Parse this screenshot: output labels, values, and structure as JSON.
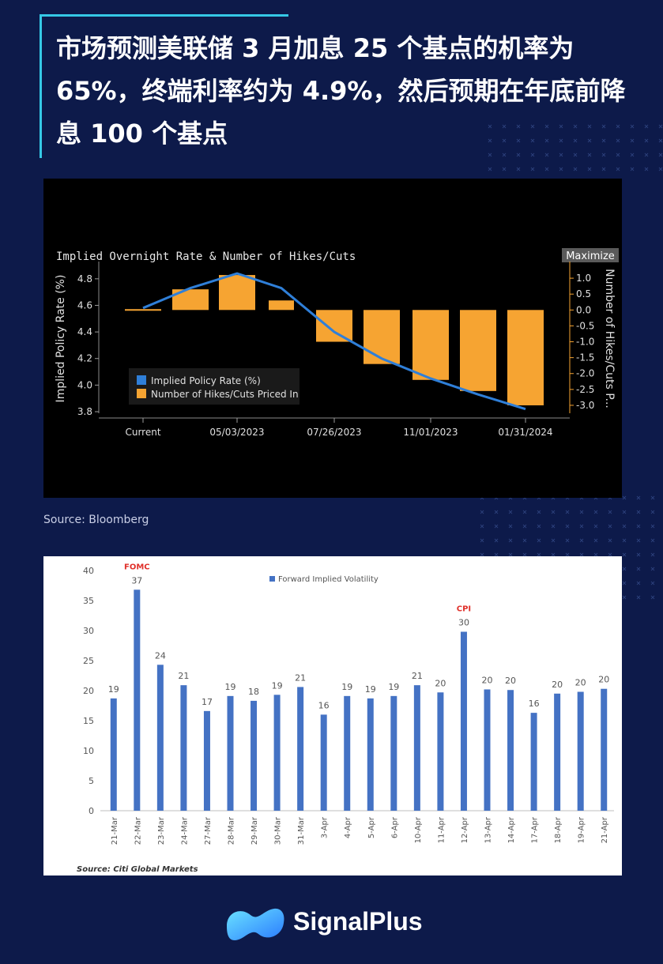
{
  "title": "市场预测美联储 3 月加息 25 个基点的机率为 65%，终端利率约为 4.9%，然后预期在年底前降息 100 个基点",
  "source1": "Source: Bloomberg",
  "brand": "SignalPlus",
  "colors": {
    "background": "#0d1a4a",
    "accent": "#35c8e6",
    "orange": "#f6a432",
    "blue_line": "#2f7fd8",
    "bar_blue": "#4472c4"
  },
  "chart_data": [
    {
      "type": "bar",
      "title": "Implied Overnight Rate & Number of Hikes/Cuts",
      "button": "Maximize",
      "ylabel": "Implied Policy Rate (%)",
      "y2label": "Number of Hikes/Cuts P...",
      "ylim": [
        3.8,
        4.9
      ],
      "y2lim": [
        -3.2,
        1.4
      ],
      "yticks": [
        "4.8",
        "4.6",
        "4.4",
        "4.2",
        "4.0",
        "3.8"
      ],
      "y2ticks": [
        "1.0",
        "0.5",
        "0.0",
        "-0.5",
        "-1.0",
        "-1.5",
        "-2.0",
        "-2.5",
        "-3.0"
      ],
      "xticks": [
        "Current",
        "05/03/2023",
        "07/26/2023",
        "11/01/2023",
        "01/31/2024"
      ],
      "legend": [
        "Implied Policy Rate (%)",
        "Number of Hikes/Cuts Priced In"
      ],
      "series": [
        {
          "name": "Number of Hikes/Cuts Priced In",
          "values": [
            0.0,
            0.65,
            1.1,
            0.3,
            -1.0,
            -1.7,
            -2.2,
            -2.55,
            -3.0
          ]
        },
        {
          "name": "Implied Policy Rate (%)",
          "values": [
            4.58,
            4.73,
            4.84,
            4.73,
            4.4,
            4.2,
            4.05,
            3.93,
            3.82
          ]
        }
      ]
    },
    {
      "type": "bar",
      "legend": "Forward Implied Volatility",
      "source": "Source: Citi Global Markets",
      "ylim": [
        0,
        40
      ],
      "yticks": [
        "0",
        "5",
        "10",
        "15",
        "20",
        "25",
        "30",
        "35",
        "40"
      ],
      "annotations": [
        {
          "label": "FOMC",
          "category": "22-Mar"
        },
        {
          "label": "CPI",
          "category": "12-Apr"
        }
      ],
      "categories": [
        "21-Mar",
        "22-Mar",
        "23-Mar",
        "24-Mar",
        "27-Mar",
        "28-Mar",
        "29-Mar",
        "30-Mar",
        "31-Mar",
        "3-Apr",
        "4-Apr",
        "5-Apr",
        "6-Apr",
        "10-Apr",
        "11-Apr",
        "12-Apr",
        "13-Apr",
        "14-Apr",
        "17-Apr",
        "18-Apr",
        "19-Apr",
        "21-Apr"
      ],
      "labels": [
        "19",
        "37",
        "24",
        "21",
        "17",
        "19",
        "18",
        "19",
        "21",
        "16",
        "19",
        "19",
        "19",
        "21",
        "20",
        "30",
        "20",
        "20",
        "16",
        "20",
        "20",
        "20"
      ],
      "values": [
        18.7,
        36.8,
        24.3,
        20.9,
        16.6,
        19.1,
        18.3,
        19.3,
        20.6,
        16.0,
        19.1,
        18.7,
        19.1,
        20.9,
        19.7,
        29.8,
        20.2,
        20.1,
        16.3,
        19.5,
        19.8,
        20.3
      ]
    }
  ]
}
